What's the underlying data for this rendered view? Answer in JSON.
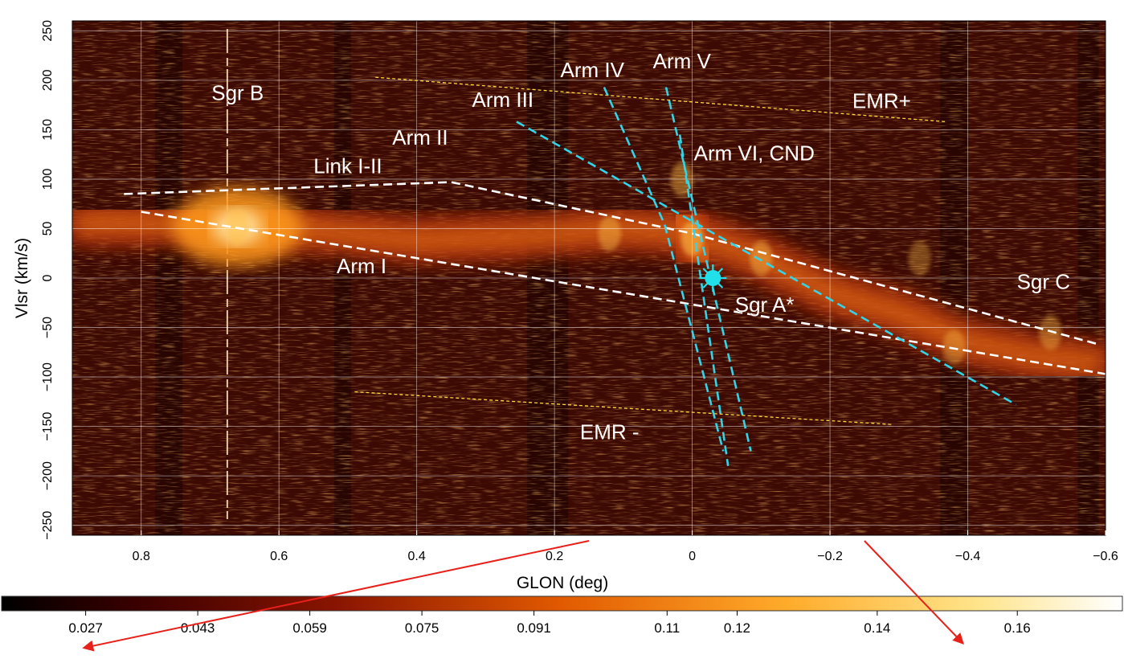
{
  "chart_data": {
    "type": "heatmap",
    "subtype": "position-velocity diagram",
    "xlabel": "GLON (deg)",
    "ylabel": "Vlsr (km/s)",
    "xlim": [
      0.9,
      -0.6
    ],
    "ylim": [
      -260,
      260
    ],
    "x_ticks": [
      0.8,
      0.6,
      0.4,
      0.2,
      0,
      -0.2,
      -0.4,
      -0.6
    ],
    "x_tick_labels": [
      "0.8",
      "0.6",
      "0.4",
      "0.2",
      "0",
      "−0.2",
      "−0.4",
      "−0.6"
    ],
    "y_ticks": [
      250,
      200,
      150,
      100,
      50,
      0,
      -50,
      -100,
      -150,
      -200,
      -250
    ],
    "y_tick_labels": [
      "250",
      "200",
      "150",
      "100",
      "50",
      "0",
      "−50",
      "−100",
      "−150",
      "−200",
      "−250"
    ],
    "grid": true,
    "colorbar": {
      "colormap": "hot",
      "range": [
        0.015,
        0.175
      ],
      "ticks": [
        0.027,
        0.043,
        0.059,
        0.075,
        0.091,
        0.11,
        0.12,
        0.14,
        0.16
      ],
      "tick_labels": [
        "0.027",
        "0.043",
        "0.059",
        "0.075",
        "0.091",
        "0.11",
        "0.12",
        "0.14",
        "0.16"
      ]
    },
    "emission": [
      {
        "name": "main band",
        "points": [
          [
            0.88,
            55
          ],
          [
            0.75,
            55
          ],
          [
            0.66,
            52
          ],
          [
            0.55,
            48
          ],
          [
            0.4,
            38
          ],
          [
            0.25,
            42
          ],
          [
            0.1,
            50
          ],
          [
            0.0,
            45
          ],
          [
            -0.1,
            20
          ],
          [
            -0.2,
            -15
          ],
          [
            -0.3,
            -35
          ],
          [
            -0.4,
            -65
          ],
          [
            -0.5,
            -80
          ],
          [
            -0.58,
            -85
          ]
        ],
        "width": 60,
        "strength": 0.85
      },
      {
        "name": "Sgr B peak",
        "points": [
          [
            0.66,
            52
          ]
        ],
        "width": 90,
        "strength": 1.0
      },
      {
        "name": "Sgr A* region",
        "points": [
          [
            0.02,
            60
          ],
          [
            0.0,
            40
          ],
          [
            -0.02,
            20
          ]
        ],
        "width": 70,
        "strength": 1.0
      }
    ],
    "bright_blobs": [
      {
        "label": "Sgr B",
        "x": 0.66,
        "y": 52,
        "strength": 1.0
      },
      {
        "label": "Sgr A* region",
        "x": 0.0,
        "y": 40,
        "strength": 1.0
      },
      {
        "label": "",
        "x": 0.015,
        "y": 100,
        "strength": 0.8
      },
      {
        "label": "",
        "x": 0.12,
        "y": 45,
        "strength": 0.8
      },
      {
        "label": "",
        "x": -0.1,
        "y": 20,
        "strength": 0.8
      },
      {
        "label": "",
        "x": -0.38,
        "y": -70,
        "strength": 0.7
      },
      {
        "label": "",
        "x": -0.52,
        "y": -55,
        "strength": 0.7
      },
      {
        "label": "",
        "x": -0.33,
        "y": 20,
        "strength": 0.6
      }
    ],
    "arms": [
      {
        "name": "Arm I",
        "color": "#ffffff",
        "points": [
          [
            0.8,
            67
          ],
          [
            -0.6,
            -97
          ]
        ]
      },
      {
        "name": "Link I-II / Arm II",
        "color": "#ffffff",
        "points": [
          [
            0.825,
            85
          ],
          [
            0.35,
            97
          ],
          [
            0.0,
            45
          ],
          [
            -0.59,
            -67
          ]
        ]
      },
      {
        "name": "Arm III",
        "color": "#33d4e8",
        "points": [
          [
            0.255,
            158
          ],
          [
            -0.47,
            -128
          ]
        ]
      },
      {
        "name": "Arm IV",
        "color": "#33d4e8",
        "points": [
          [
            0.128,
            193
          ],
          [
            0.04,
            54
          ],
          [
            -0.045,
            -175
          ]
        ]
      },
      {
        "name": "Arm V",
        "color": "#33d4e8",
        "points": [
          [
            0.038,
            193
          ],
          [
            -0.085,
            -175
          ]
        ]
      },
      {
        "name": "Arm VI, CND",
        "color": "#33d4e8",
        "points": [
          [
            0.018,
            145
          ],
          [
            -0.052,
            -190
          ]
        ]
      }
    ],
    "emr_lines": [
      {
        "name": "EMR+",
        "color": "#ffd83a",
        "points": [
          [
            0.46,
            203
          ],
          [
            -0.37,
            158
          ]
        ]
      },
      {
        "name": "EMR -",
        "color": "#ffd83a",
        "points": [
          [
            0.49,
            -115
          ],
          [
            -0.29,
            -148
          ]
        ]
      }
    ],
    "annotations": [
      {
        "text": "Sgr B",
        "x": 0.66,
        "y": 180
      },
      {
        "text": "Arm IV",
        "x": 0.145,
        "y": 203
      },
      {
        "text": "Arm V",
        "x": 0.015,
        "y": 212
      },
      {
        "text": "Arm III",
        "x": 0.275,
        "y": 173
      },
      {
        "text": "EMR+",
        "x": -0.275,
        "y": 172
      },
      {
        "text": "Arm II",
        "x": 0.395,
        "y": 135
      },
      {
        "text": "Link I-II",
        "x": 0.5,
        "y": 106
      },
      {
        "text": "Arm VI, CND",
        "x": -0.09,
        "y": 119
      },
      {
        "text": "Arm I",
        "x": 0.48,
        "y": 5
      },
      {
        "text": "Sgr A*",
        "x": -0.105,
        "y": -34
      },
      {
        "text": "Sgr C",
        "x": -0.51,
        "y": -11
      },
      {
        "text": "EMR -",
        "x": 0.12,
        "y": -163
      }
    ],
    "sgr_a_marker": {
      "x": -0.03,
      "y": 0,
      "color": "#22e0ea"
    }
  },
  "arrows": [
    {
      "color": "#e8201a",
      "description": "zoom from GLON 0.15 to left colorbar end"
    },
    {
      "color": "#e8201a",
      "description": "zoom from GLON -0.25 to right colorbar region"
    }
  ]
}
